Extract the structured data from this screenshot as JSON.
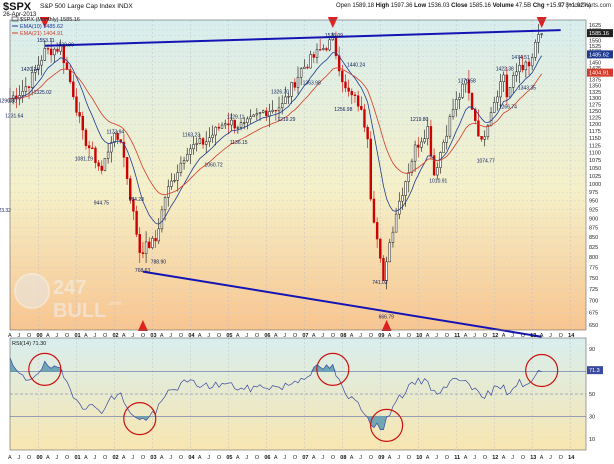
{
  "header": {
    "symbol": "$SPX",
    "name": "S&P 500 Large Cap Index  INDX",
    "date": "26-Apr-2013",
    "open_label": "Open",
    "open_value": "1589.18",
    "high_label": "High",
    "high_value": "1597.36",
    "low_label": "Low",
    "low_value": "1536.03",
    "close_label": "Close",
    "close_value": "1585.16",
    "volume_label": "Volume",
    "volume_value": "47.5B",
    "chg_label": "Chg",
    "chg_value": "+15.97 (+1.02%)",
    "credit": "© StockCharts.com"
  },
  "legend": {
    "price": "$SPX (Monthly) 1585.16",
    "ema1": "EMA(10) 1485.62",
    "ema2": "EMA(21) 1404.91",
    "rsi": "RSI(14) 71.30"
  },
  "watermark": {
    "text": "247",
    "text2": "BULL",
    "text3": ".com"
  },
  "colors": {
    "candle_up": "#111111",
    "candle_down": "#cc0000",
    "ema10": "#1f3a93",
    "ema21": "#d43a2a",
    "trendline": "#1414b4",
    "marker": "#e02020",
    "circle": "#cc1111",
    "rsi_line": "#3a4aa0",
    "rsi_fill": "#5a9ab0",
    "bg_top": "#d8eeee",
    "bg_mid": "#f5f0c8",
    "bg_bot": "#f8c590"
  },
  "chart_data": [
    {
      "type": "candlestick",
      "title": "$SPX S&P 500 Large Cap Index INDX",
      "y_scale": "log",
      "ylim": [
        640,
        1650
      ],
      "y_ticks": [
        650,
        675,
        700,
        725,
        750,
        775,
        800,
        825,
        850,
        875,
        900,
        925,
        950,
        975,
        1000,
        1025,
        1050,
        1075,
        1100,
        1125,
        1150,
        1175,
        1200,
        1225,
        1250,
        1275,
        1300,
        1325,
        1350,
        1375,
        1400,
        1425,
        1450,
        1475,
        1500,
        1525,
        1550,
        1575,
        1600,
        1625
      ],
      "x_month_labels": [
        "A",
        "J",
        "O",
        "00",
        "A",
        "J",
        "O",
        "01",
        "A",
        "J",
        "O",
        "02",
        "A",
        "J",
        "O",
        "03",
        "A",
        "J",
        "O",
        "04",
        "A",
        "J",
        "O",
        "05",
        "A",
        "J",
        "O",
        "06",
        "A",
        "J",
        "O",
        "07",
        "A",
        "J",
        "O",
        "08",
        "A",
        "J",
        "O",
        "09",
        "A",
        "J",
        "O",
        "10",
        "A",
        "J",
        "O",
        "11",
        "A",
        "J",
        "O",
        "12",
        "A",
        "J",
        "O",
        "13",
        "A",
        "J",
        "O",
        "14"
      ],
      "series": [
        {
          "name": "$SPX (Monthly)",
          "value": 1585.16
        },
        {
          "name": "EMA(10)",
          "value": 1485.62
        },
        {
          "name": "EMA(21)",
          "value": 1404.91
        }
      ],
      "last_value_tags": [
        1585.16,
        1485.62,
        1404.91
      ],
      "close_path": [
        {
          "x": "1999-03",
          "y": 1290
        },
        {
          "x": "1999-08",
          "y": 1330
        },
        {
          "x": "1999-10",
          "y": 1362
        },
        {
          "x": "2000-03",
          "y": 1498
        },
        {
          "x": "2000-08",
          "y": 1517
        },
        {
          "x": "2000-12",
          "y": 1320
        },
        {
          "x": "2001-03",
          "y": 1160
        },
        {
          "x": "2001-09",
          "y": 1040
        },
        {
          "x": "2001-12",
          "y": 1148
        },
        {
          "x": "2002-03",
          "y": 1147
        },
        {
          "x": "2002-07",
          "y": 911
        },
        {
          "x": "2002-09",
          "y": 815
        },
        {
          "x": "2003-02",
          "y": 841
        },
        {
          "x": "2003-05",
          "y": 963
        },
        {
          "x": "2003-12",
          "y": 1112
        },
        {
          "x": "2004-06",
          "y": 1140
        },
        {
          "x": "2004-12",
          "y": 1212
        },
        {
          "x": "2005-06",
          "y": 1191
        },
        {
          "x": "2005-12",
          "y": 1248
        },
        {
          "x": "2006-06",
          "y": 1270
        },
        {
          "x": "2006-12",
          "y": 1418
        },
        {
          "x": "2007-06",
          "y": 1503
        },
        {
          "x": "2007-10",
          "y": 1549
        },
        {
          "x": "2008-02",
          "y": 1331
        },
        {
          "x": "2008-06",
          "y": 1280
        },
        {
          "x": "2008-09",
          "y": 1166
        },
        {
          "x": "2008-10",
          "y": 969
        },
        {
          "x": "2009-02",
          "y": 735
        },
        {
          "x": "2009-03",
          "y": 798
        },
        {
          "x": "2009-06",
          "y": 919
        },
        {
          "x": "2009-12",
          "y": 1115
        },
        {
          "x": "2010-04",
          "y": 1187
        },
        {
          "x": "2010-06",
          "y": 1031
        },
        {
          "x": "2010-12",
          "y": 1258
        },
        {
          "x": "2011-04",
          "y": 1364
        },
        {
          "x": "2011-09",
          "y": 1131
        },
        {
          "x": "2011-12",
          "y": 1258
        },
        {
          "x": "2012-04",
          "y": 1398
        },
        {
          "x": "2012-05",
          "y": 1310
        },
        {
          "x": "2012-09",
          "y": 1441
        },
        {
          "x": "2012-12",
          "y": 1426
        },
        {
          "x": "2013-03",
          "y": 1569
        },
        {
          "x": "2013-04",
          "y": 1585
        }
      ],
      "price_labels": [
        {
          "x": "1999-03",
          "y": 1290.8,
          "text": "1290.80"
        },
        {
          "x": "1999-05",
          "y": 1231.64,
          "text": "1231.64"
        },
        {
          "x": "1999-10",
          "y": 1420.14,
          "text": "1420.14"
        },
        {
          "x": "2000-02",
          "y": 1325.02,
          "text": "1325.02"
        },
        {
          "x": "2000-03",
          "y": 1553.11,
          "text": "1553.11"
        },
        {
          "x": "2000-09",
          "y": 1530.09,
          "text": "1530.09"
        },
        {
          "x": "2001-03",
          "y": 1081.19,
          "text": "1081.19"
        },
        {
          "x": "2001-09",
          "y": 944.75,
          "text": "944.75"
        },
        {
          "x": "2002-01",
          "y": 1173.94,
          "text": "1173.94"
        },
        {
          "x": "2002-08",
          "y": 954.28,
          "text": "954.28"
        },
        {
          "x": "2002-10",
          "y": 768.63,
          "text": "768.63"
        },
        {
          "x": "2003-03",
          "y": 788.9,
          "text": "788.90"
        },
        {
          "x": "1999-02",
          "y": 923.32,
          "text": "923.32"
        },
        {
          "x": "2004-01",
          "y": 1163.23,
          "text": "1163.23"
        },
        {
          "x": "2004-08",
          "y": 1060.72,
          "text": "1060.72"
        },
        {
          "x": "2005-03",
          "y": 1229.11,
          "text": "1229.11"
        },
        {
          "x": "2005-04",
          "y": 1136.15,
          "text": "1136.15"
        },
        {
          "x": "2006-05",
          "y": 1326.7,
          "text": "1326.70"
        },
        {
          "x": "2006-07",
          "y": 1219.29,
          "text": "1219.29"
        },
        {
          "x": "2007-03",
          "y": 1363.98,
          "text": "1363.98"
        },
        {
          "x": "2007-10",
          "y": 1576.09,
          "text": "1576.09"
        },
        {
          "x": "2008-05",
          "y": 1440.24,
          "text": "1440.24"
        },
        {
          "x": "2008-01",
          "y": 1256.98,
          "text": "1256.98"
        },
        {
          "x": "2009-03",
          "y": 666.79,
          "text": "666.79"
        },
        {
          "x": "2009-01",
          "y": 741.02,
          "text": "741.02"
        },
        {
          "x": "2010-01",
          "y": 1219.8,
          "text": "1219.80"
        },
        {
          "x": "2010-07",
          "y": 1010.91,
          "text": "1010.91"
        },
        {
          "x": "2011-04",
          "y": 1370.58,
          "text": "1370.58"
        },
        {
          "x": "2012-04",
          "y": 1422.38,
          "text": "1422.38"
        },
        {
          "x": "2011-10",
          "y": 1074.77,
          "text": "1074.77"
        },
        {
          "x": "2012-05",
          "y": 1266.74,
          "text": "1266.74"
        },
        {
          "x": "2012-09",
          "y": 1474.51,
          "text": "1474.51"
        },
        {
          "x": "2012-11",
          "y": 1343.35,
          "text": "1343.35"
        }
      ],
      "top_markers": [
        "2000-03",
        "2007-10",
        "2013-04"
      ],
      "bottom_markers": [
        "2002-10",
        "2009-03"
      ],
      "trendlines": [
        {
          "from": {
            "x": "2000-03",
            "y": 1525
          },
          "to": {
            "x": "2013-10",
            "y": 1600
          }
        },
        {
          "from": {
            "x": "2002-10",
            "y": 765
          },
          "to": {
            "x": "2013-04",
            "y": 627
          }
        }
      ]
    },
    {
      "type": "line",
      "title": "RSI(14) 71.30",
      "ylim": [
        0,
        100
      ],
      "y_ticks": [
        10,
        30,
        50,
        70,
        90
      ],
      "levels": [
        70,
        50,
        30
      ],
      "value": 71.3,
      "x_month_labels": [
        "A",
        "J",
        "O",
        "00",
        "A",
        "J",
        "O",
        "01",
        "A",
        "J",
        "O",
        "02",
        "A",
        "J",
        "O",
        "03",
        "A",
        "J",
        "O",
        "04",
        "A",
        "J",
        "O",
        "05",
        "A",
        "J",
        "O",
        "06",
        "A",
        "J",
        "O",
        "07",
        "A",
        "J",
        "O",
        "08",
        "A",
        "J",
        "O",
        "09",
        "A",
        "J",
        "O",
        "10",
        "A",
        "J",
        "O",
        "11",
        "A",
        "J",
        "O",
        "12",
        "A",
        "J",
        "O",
        "13",
        "A",
        "J",
        "O",
        "14"
      ],
      "rsi_path": [
        {
          "x": "1999-04",
          "y": 79
        },
        {
          "x": "1999-07",
          "y": 66
        },
        {
          "x": "1999-10",
          "y": 63
        },
        {
          "x": "2000-03",
          "y": 76
        },
        {
          "x": "2000-08",
          "y": 70
        },
        {
          "x": "2000-12",
          "y": 50
        },
        {
          "x": "2001-03",
          "y": 40
        },
        {
          "x": "2001-09",
          "y": 36
        },
        {
          "x": "2001-12",
          "y": 46
        },
        {
          "x": "2002-03",
          "y": 49
        },
        {
          "x": "2002-07",
          "y": 30
        },
        {
          "x": "2002-09",
          "y": 26
        },
        {
          "x": "2003-02",
          "y": 33
        },
        {
          "x": "2003-06",
          "y": 52
        },
        {
          "x": "2003-12",
          "y": 61
        },
        {
          "x": "2004-06",
          "y": 57
        },
        {
          "x": "2004-12",
          "y": 59
        },
        {
          "x": "2005-06",
          "y": 54
        },
        {
          "x": "2005-12",
          "y": 57
        },
        {
          "x": "2006-06",
          "y": 56
        },
        {
          "x": "2006-12",
          "y": 64
        },
        {
          "x": "2007-05",
          "y": 73
        },
        {
          "x": "2007-10",
          "y": 74
        },
        {
          "x": "2008-02",
          "y": 48
        },
        {
          "x": "2008-06",
          "y": 43
        },
        {
          "x": "2008-10",
          "y": 25
        },
        {
          "x": "2009-02",
          "y": 18
        },
        {
          "x": "2009-05",
          "y": 42
        },
        {
          "x": "2009-12",
          "y": 60
        },
        {
          "x": "2010-04",
          "y": 63
        },
        {
          "x": "2010-06",
          "y": 50
        },
        {
          "x": "2010-12",
          "y": 62
        },
        {
          "x": "2011-04",
          "y": 65
        },
        {
          "x": "2011-09",
          "y": 45
        },
        {
          "x": "2011-12",
          "y": 52
        },
        {
          "x": "2012-04",
          "y": 60
        },
        {
          "x": "2012-05",
          "y": 51
        },
        {
          "x": "2012-09",
          "y": 60
        },
        {
          "x": "2012-12",
          "y": 58
        },
        {
          "x": "2013-04",
          "y": 71.3
        }
      ],
      "circles": [
        {
          "x": "2000-03",
          "y": 72
        },
        {
          "x": "2002-09",
          "y": 28
        },
        {
          "x": "2007-10",
          "y": 72
        },
        {
          "x": "2009-03",
          "y": 22
        },
        {
          "x": "2013-04",
          "y": 71
        }
      ]
    }
  ]
}
